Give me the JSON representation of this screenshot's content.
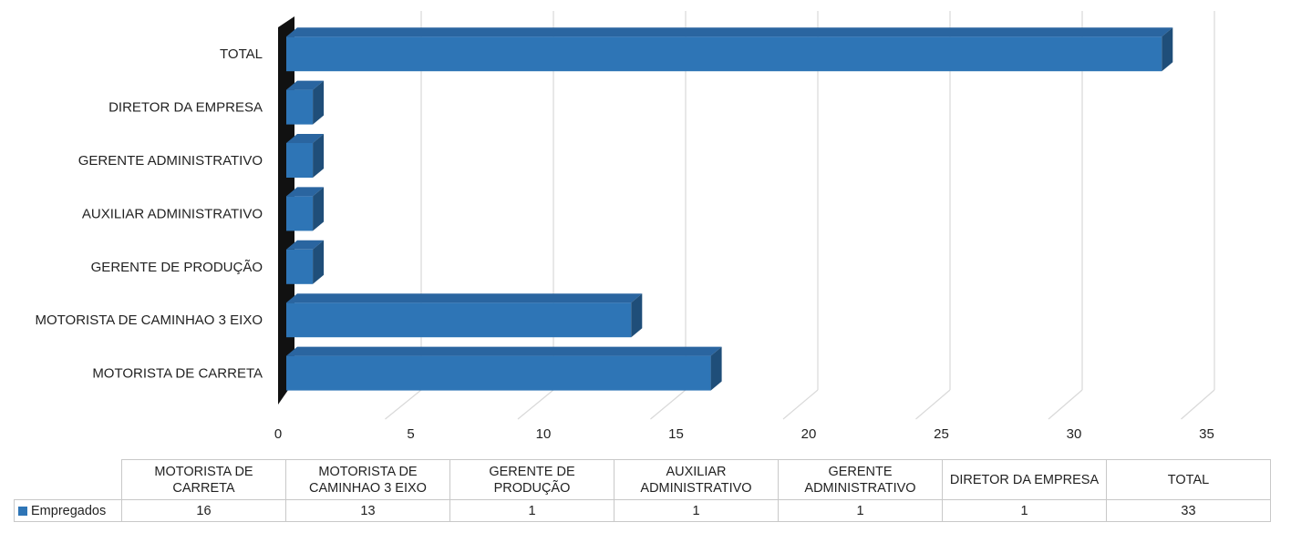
{
  "chart_data": {
    "type": "bar",
    "orientation": "horizontal",
    "style": "3d",
    "categories": [
      "MOTORISTA DE CARRETA",
      "MOTORISTA DE CAMINHAO 3 EIXO",
      "GERENTE DE PRODUÇÃO",
      "AUXILIAR ADMINISTRATIVO",
      "GERENTE ADMINISTRATIVO",
      "DIRETOR DA EMPRESA",
      "TOTAL"
    ],
    "series": [
      {
        "name": "Empregados",
        "values": [
          16,
          13,
          1,
          1,
          1,
          1,
          33
        ],
        "color": "#2e75b6"
      }
    ],
    "xlim": [
      0,
      35
    ],
    "xticks": [
      "0",
      "5",
      "10",
      "15",
      "20",
      "25",
      "30",
      "35"
    ],
    "grid": true,
    "legend": "data-table",
    "data_table": {
      "headers": [
        "MOTORISTA DE CARRETA",
        "MOTORISTA DE CAMINHAO 3 EIXO",
        "GERENTE DE PRODUÇÃO",
        "AUXILIAR ADMINISTRATIVO",
        "GERENTE ADMINISTRATIVO",
        "DIRETOR DA EMPRESA",
        "TOTAL"
      ],
      "row_label": "Empregados",
      "values": [
        "16",
        "13",
        "1",
        "1",
        "1",
        "1",
        "33"
      ]
    }
  }
}
